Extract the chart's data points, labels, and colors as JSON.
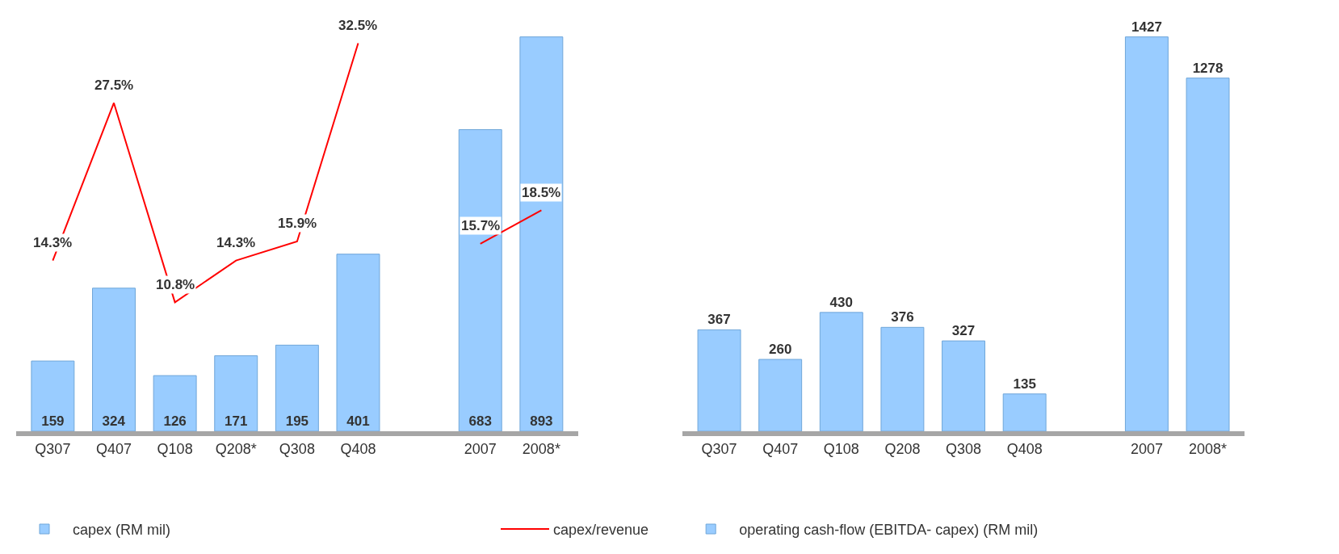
{
  "chart_data": [
    {
      "type": "bar",
      "categories": [
        "Q307",
        "Q407",
        "Q108",
        "Q208*",
        "Q308",
        "Q408",
        null,
        "2007",
        "2008*"
      ],
      "series": [
        {
          "name": "capex (RM mil)",
          "color": "#99ccff",
          "values": [
            159,
            324,
            126,
            171,
            195,
            401,
            null,
            683,
            893
          ]
        },
        {
          "name": "capex/revenue",
          "type": "line",
          "axis": "y2",
          "color": "#ff0000",
          "values": [
            14.3,
            27.5,
            10.8,
            14.3,
            15.9,
            32.5,
            null,
            15.7,
            18.5
          ],
          "value_labels": [
            "14.3%",
            "27.5%",
            "10.8%",
            "14.3%",
            "15.9%",
            "32.5%",
            null,
            "15.7%",
            "18.5%"
          ]
        }
      ],
      "data_labels": true,
      "tick_labels": "x",
      "legend": "bottom"
    },
    {
      "type": "bar",
      "categories": [
        "Q307",
        "Q407",
        "Q108",
        "Q208",
        "Q308",
        "Q408",
        null,
        "2007",
        "2008*"
      ],
      "series": [
        {
          "name": "operating cash-flow (EBITDA- capex) (RM mil)",
          "color": "#99ccff",
          "values": [
            367,
            260,
            430,
            376,
            327,
            135,
            null,
            1427,
            1278
          ]
        }
      ],
      "data_labels": true,
      "tick_labels": "x",
      "legend": "bottom"
    }
  ]
}
